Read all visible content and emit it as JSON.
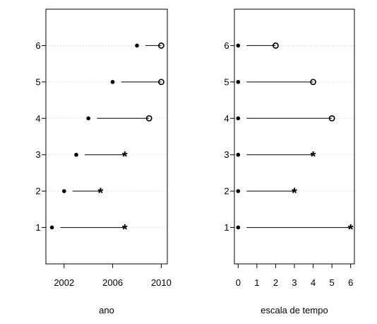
{
  "chart_data": [
    {
      "type": "scatter",
      "title": "",
      "xlabel": "ano",
      "ylabel": "",
      "xlim": [
        2000.5,
        2010.5
      ],
      "ylim": [
        0,
        7
      ],
      "xticks": [
        "2002",
        "2006",
        "2010"
      ],
      "yticks": [
        "1",
        "2",
        "3",
        "4",
        "5",
        "6"
      ],
      "grid": "horizontal dotted",
      "subjects": [
        {
          "y": 1,
          "start": 2001.0,
          "end": 2007.0,
          "end_marker": "*"
        },
        {
          "y": 2,
          "start": 2002.0,
          "end": 2005.0,
          "end_marker": "*"
        },
        {
          "y": 3,
          "start": 2003.0,
          "end": 2007.0,
          "end_marker": "*"
        },
        {
          "y": 4,
          "start": 2004.0,
          "end": 2009.0,
          "end_marker": "o"
        },
        {
          "y": 5,
          "start": 2006.0,
          "end": 2010.0,
          "end_marker": "o"
        },
        {
          "y": 6,
          "start": 2008.0,
          "end": 2010.0,
          "end_marker": "o"
        }
      ]
    },
    {
      "type": "scatter",
      "title": "",
      "xlabel": "escala de tempo",
      "ylabel": "",
      "xlim": [
        -0.2,
        6.2
      ],
      "ylim": [
        0,
        7
      ],
      "xticks": [
        "0",
        "1",
        "2",
        "3",
        "4",
        "5",
        "6"
      ],
      "yticks": [
        "1",
        "2",
        "3",
        "4",
        "5",
        "6"
      ],
      "grid": "horizontal dotted",
      "subjects": [
        {
          "y": 1,
          "start": 0,
          "end": 6,
          "end_marker": "*"
        },
        {
          "y": 2,
          "start": 0,
          "end": 3,
          "end_marker": "*"
        },
        {
          "y": 3,
          "start": 0,
          "end": 4,
          "end_marker": "*"
        },
        {
          "y": 4,
          "start": 0,
          "end": 5,
          "end_marker": "o"
        },
        {
          "y": 5,
          "start": 0,
          "end": 4,
          "end_marker": "o"
        },
        {
          "y": 6,
          "start": 0,
          "end": 2,
          "end_marker": "o"
        }
      ]
    }
  ]
}
